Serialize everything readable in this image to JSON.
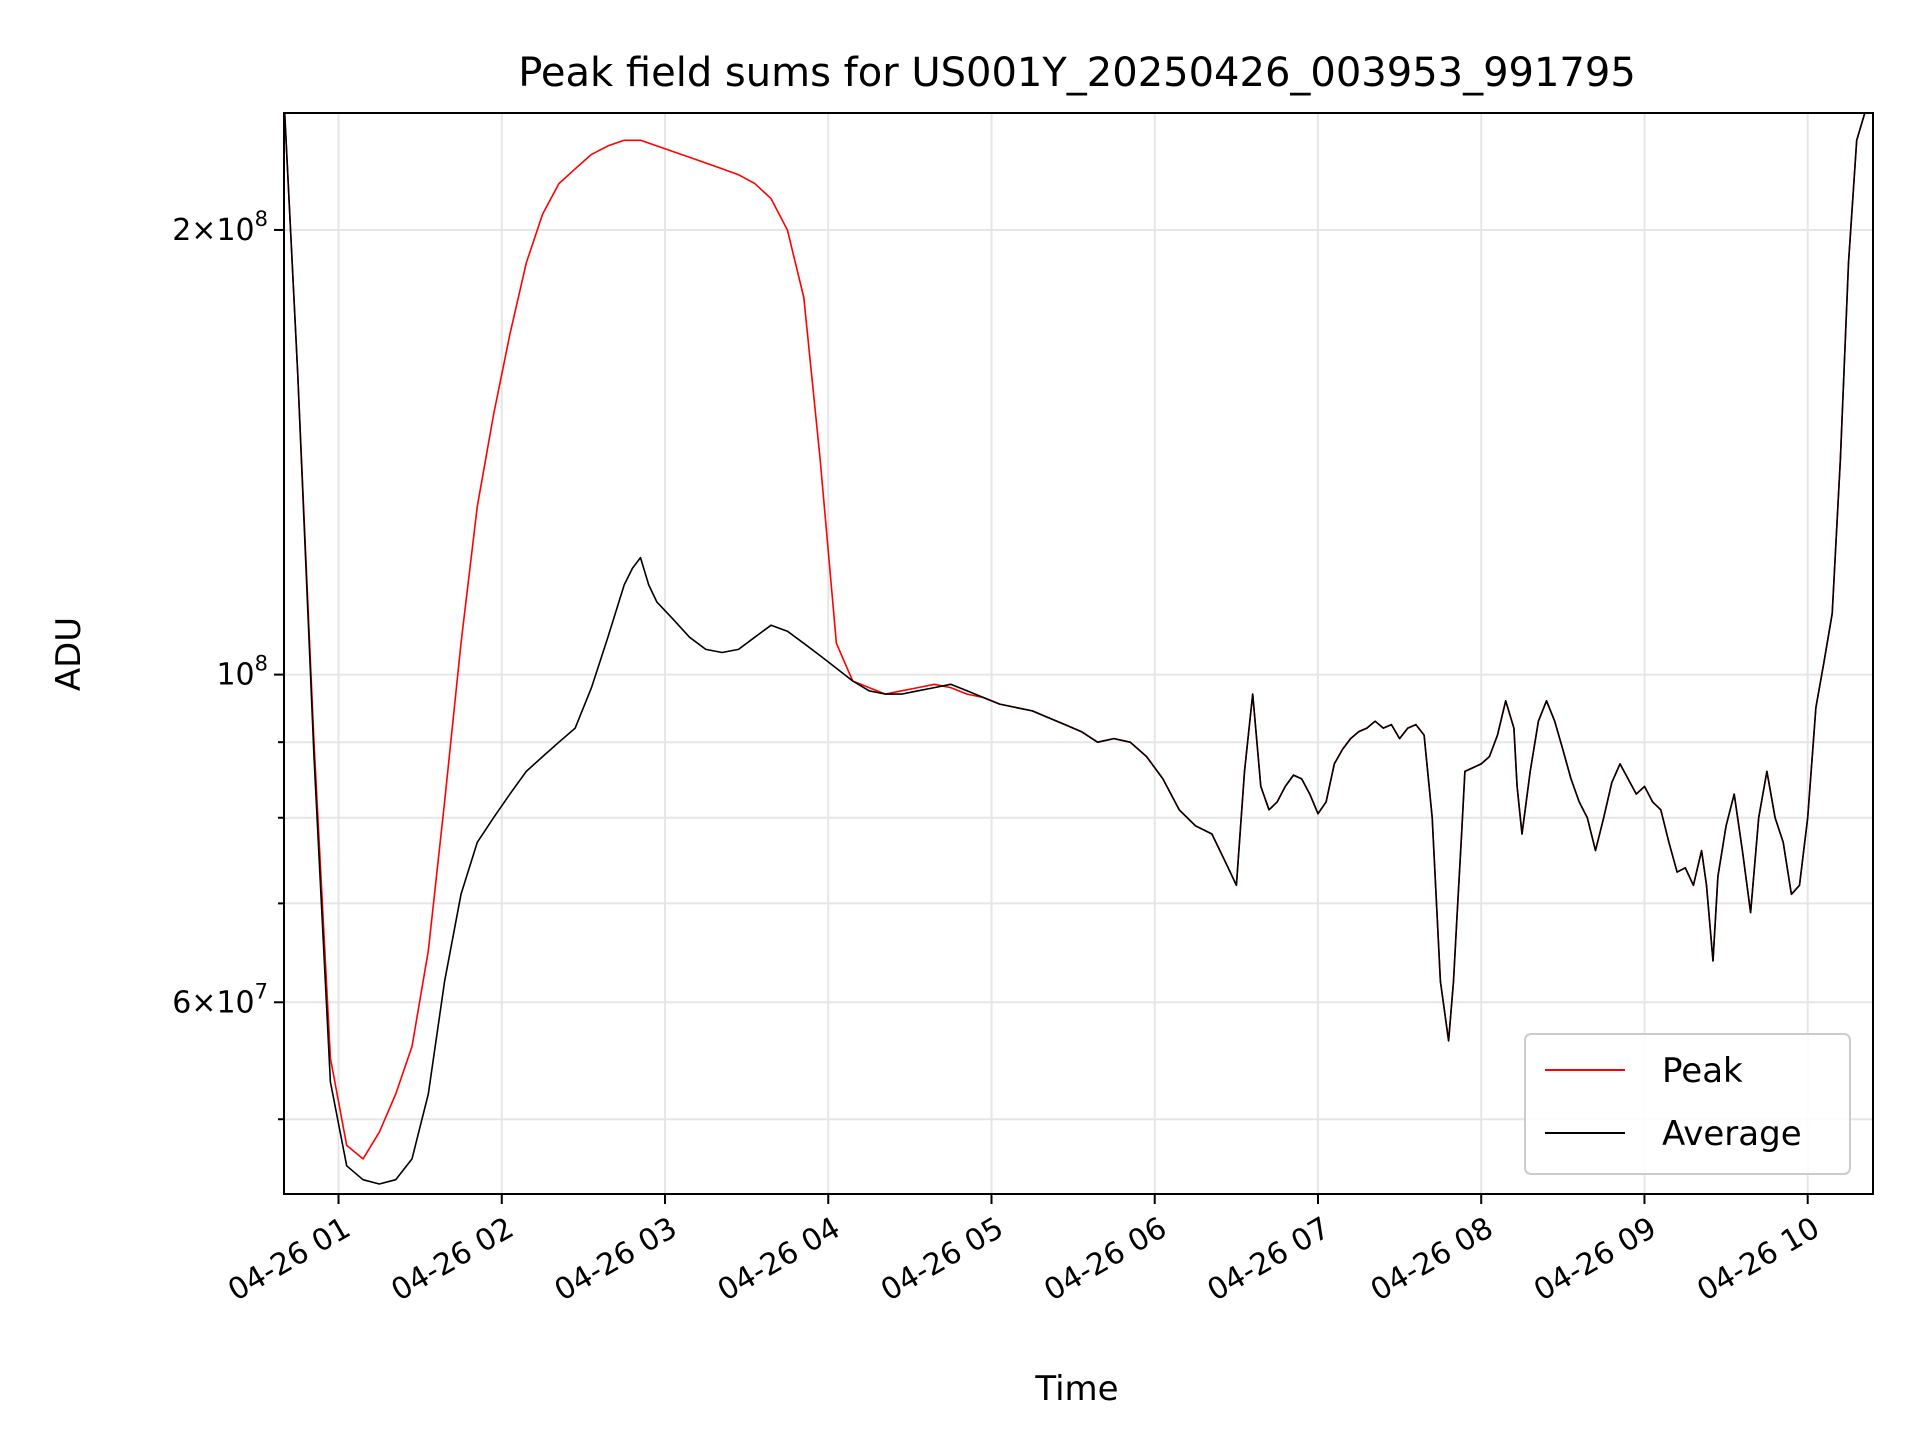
{
  "chart_data": {
    "type": "line",
    "title": "Peak field sums for US001Y_20250426_003953_991795",
    "xlabel": "Time",
    "ylabel": "ADU",
    "yscale": "log",
    "xlim_hours": [
      0.666,
      10.4
    ],
    "ylim": [
      44500000,
      240000000
    ],
    "grid": true,
    "legend_position": "lower-right",
    "x_ticks": [
      {
        "hour": 1,
        "label": "04-26 01"
      },
      {
        "hour": 2,
        "label": "04-26 02"
      },
      {
        "hour": 3,
        "label": "04-26 03"
      },
      {
        "hour": 4,
        "label": "04-26 04"
      },
      {
        "hour": 5,
        "label": "04-26 05"
      },
      {
        "hour": 6,
        "label": "04-26 06"
      },
      {
        "hour": 7,
        "label": "04-26 07"
      },
      {
        "hour": 8,
        "label": "04-26 08"
      },
      {
        "hour": 9,
        "label": "04-26 09"
      },
      {
        "hour": 10,
        "label": "04-26 10"
      }
    ],
    "y_major_ticks": [
      {
        "value": 60000000,
        "mantissa": "6",
        "exp": "7"
      },
      {
        "value": 100000000,
        "mantissa": "",
        "exp": "8"
      },
      {
        "value": 200000000,
        "mantissa": "2",
        "exp": "8"
      }
    ],
    "y_minor_ticks": [
      50000000,
      70000000,
      80000000,
      90000000
    ],
    "series": [
      {
        "name": "Peak",
        "color": "#ff0000",
        "x": [
          0.67,
          0.75,
          0.85,
          0.95,
          1.05,
          1.15,
          1.25,
          1.35,
          1.45,
          1.55,
          1.65,
          1.75,
          1.85,
          1.95,
          2.05,
          2.15,
          2.25,
          2.35,
          2.45,
          2.55,
          2.65,
          2.75,
          2.85,
          2.95,
          3.05,
          3.15,
          3.25,
          3.35,
          3.45,
          3.55,
          3.65,
          3.75,
          3.85,
          3.95,
          4.05,
          4.15,
          4.25,
          4.35,
          4.45,
          4.55,
          4.65,
          4.75,
          4.85,
          4.95,
          5.05,
          5.15,
          5.25,
          5.35,
          5.45,
          5.55,
          5.65,
          5.75,
          5.85,
          5.95,
          6.05,
          6.15,
          6.25,
          6.35,
          6.45,
          6.5,
          6.55,
          6.6,
          6.65,
          6.7,
          6.75,
          6.8,
          6.85,
          6.9,
          6.95,
          7.0,
          7.05,
          7.1,
          7.15,
          7.2,
          7.25,
          7.3,
          7.35,
          7.4,
          7.45,
          7.5,
          7.55,
          7.6,
          7.65,
          7.7,
          7.75,
          7.8,
          7.83,
          7.85,
          7.88,
          7.9,
          7.95,
          8.0,
          8.05,
          8.1,
          8.15,
          8.2,
          8.22,
          8.25,
          8.3,
          8.35,
          8.4,
          8.45,
          8.5,
          8.55,
          8.6,
          8.65,
          8.7,
          8.75,
          8.8,
          8.85,
          8.9,
          8.95,
          9.0,
          9.05,
          9.1,
          9.15,
          9.2,
          9.25,
          9.3,
          9.35,
          9.38,
          9.42,
          9.45,
          9.5,
          9.55,
          9.6,
          9.65,
          9.7,
          9.75,
          9.8,
          9.85,
          9.9,
          9.95,
          10.0,
          10.05,
          10.1,
          10.15,
          10.2,
          10.25,
          10.3,
          10.35,
          10.4
        ],
        "y": [
          240000000,
          160000000,
          90000000,
          55000000,
          48000000,
          47000000,
          49000000,
          52000000,
          56000000,
          65000000,
          82000000,
          105000000,
          130000000,
          150000000,
          170000000,
          190000000,
          205000000,
          215000000,
          220000000,
          225000000,
          228000000,
          230000000,
          230000000,
          228000000,
          226000000,
          224000000,
          222000000,
          220000000,
          218000000,
          215000000,
          210000000,
          200000000,
          180000000,
          140000000,
          105000000,
          99000000,
          98000000,
          97000000,
          97500000,
          98000000,
          98500000,
          98000000,
          97000000,
          96500000,
          95500000,
          95000000,
          94500000,
          93500000,
          92500000,
          91500000,
          90000000,
          90500000,
          90000000,
          88000000,
          85000000,
          81000000,
          79000000,
          78000000,
          74000000,
          72000000,
          86000000,
          97000000,
          84000000,
          81000000,
          82000000,
          84000000,
          85500000,
          85000000,
          83000000,
          80500000,
          82000000,
          87000000,
          89000000,
          90500000,
          91500000,
          92000000,
          93000000,
          92000000,
          92500000,
          90500000,
          92000000,
          92500000,
          91000000,
          80000000,
          62000000,
          56500000,
          62000000,
          68000000,
          78000000,
          86000000,
          86500000,
          87000000,
          88000000,
          91000000,
          96000000,
          92000000,
          84000000,
          78000000,
          86000000,
          93000000,
          96000000,
          93000000,
          89000000,
          85000000,
          82000000,
          80000000,
          76000000,
          80000000,
          84500000,
          87000000,
          85000000,
          83000000,
          84000000,
          82000000,
          81000000,
          77000000,
          73500000,
          74000000,
          72000000,
          76000000,
          72000000,
          64000000,
          73000000,
          79000000,
          83000000,
          76000000,
          69000000,
          80000000,
          86000000,
          80000000,
          77000000,
          71000000,
          72000000,
          80000000,
          95000000,
          102000000,
          110000000,
          140000000,
          190000000,
          230000000,
          240000000,
          240000000
        ]
      },
      {
        "name": "Average",
        "color": "#000000",
        "x": [
          0.67,
          0.75,
          0.85,
          0.95,
          1.05,
          1.15,
          1.25,
          1.35,
          1.45,
          1.55,
          1.65,
          1.75,
          1.85,
          1.95,
          2.05,
          2.15,
          2.25,
          2.35,
          2.45,
          2.55,
          2.65,
          2.75,
          2.8,
          2.85,
          2.9,
          2.95,
          3.05,
          3.15,
          3.25,
          3.35,
          3.45,
          3.55,
          3.65,
          3.75,
          3.85,
          3.95,
          4.05,
          4.15,
          4.25,
          4.35,
          4.45,
          4.55,
          4.65,
          4.75,
          4.85,
          4.95,
          5.05,
          5.15,
          5.25,
          5.35,
          5.45,
          5.55,
          5.65,
          5.75,
          5.85,
          5.95,
          6.05,
          6.15,
          6.25,
          6.35,
          6.45,
          6.5,
          6.55,
          6.6,
          6.65,
          6.7,
          6.75,
          6.8,
          6.85,
          6.9,
          6.95,
          7.0,
          7.05,
          7.1,
          7.15,
          7.2,
          7.25,
          7.3,
          7.35,
          7.4,
          7.45,
          7.5,
          7.55,
          7.6,
          7.65,
          7.7,
          7.75,
          7.8,
          7.83,
          7.85,
          7.88,
          7.9,
          7.95,
          8.0,
          8.05,
          8.1,
          8.15,
          8.2,
          8.22,
          8.25,
          8.3,
          8.35,
          8.4,
          8.45,
          8.5,
          8.55,
          8.6,
          8.65,
          8.7,
          8.75,
          8.8,
          8.85,
          8.9,
          8.95,
          9.0,
          9.05,
          9.1,
          9.15,
          9.2,
          9.25,
          9.3,
          9.35,
          9.38,
          9.42,
          9.45,
          9.5,
          9.55,
          9.6,
          9.65,
          9.7,
          9.75,
          9.8,
          9.85,
          9.9,
          9.95,
          10.0,
          10.05,
          10.1,
          10.15,
          10.2,
          10.25,
          10.3,
          10.35,
          10.4
        ],
        "y": [
          240000000,
          160000000,
          88000000,
          53000000,
          46500000,
          45500000,
          45200000,
          45500000,
          47000000,
          52000000,
          62000000,
          71000000,
          77000000,
          80000000,
          83000000,
          86000000,
          88000000,
          90000000,
          92000000,
          98000000,
          106000000,
          115000000,
          118000000,
          120000000,
          115000000,
          112000000,
          109000000,
          106000000,
          104000000,
          103500000,
          104000000,
          106000000,
          108000000,
          107000000,
          105000000,
          103000000,
          101000000,
          99000000,
          97500000,
          97000000,
          97000000,
          97500000,
          98000000,
          98500000,
          97500000,
          96500000,
          95500000,
          95000000,
          94500000,
          93500000,
          92500000,
          91500000,
          90000000,
          90500000,
          90000000,
          88000000,
          85000000,
          81000000,
          79000000,
          78000000,
          74000000,
          72000000,
          86000000,
          97000000,
          84000000,
          81000000,
          82000000,
          84000000,
          85500000,
          85000000,
          83000000,
          80500000,
          82000000,
          87000000,
          89000000,
          90500000,
          91500000,
          92000000,
          93000000,
          92000000,
          92500000,
          90500000,
          92000000,
          92500000,
          91000000,
          80000000,
          62000000,
          56500000,
          62000000,
          68000000,
          78000000,
          86000000,
          86500000,
          87000000,
          88000000,
          91000000,
          96000000,
          92000000,
          84000000,
          78000000,
          86000000,
          93000000,
          96000000,
          93000000,
          89000000,
          85000000,
          82000000,
          80000000,
          76000000,
          80000000,
          84500000,
          87000000,
          85000000,
          83000000,
          84000000,
          82000000,
          81000000,
          77000000,
          73500000,
          74000000,
          72000000,
          76000000,
          72000000,
          64000000,
          73000000,
          79000000,
          83000000,
          76000000,
          69000000,
          80000000,
          86000000,
          80000000,
          77000000,
          71000000,
          72000000,
          80000000,
          95000000,
          102000000,
          110000000,
          140000000,
          190000000,
          230000000,
          240000000,
          240000000
        ]
      }
    ]
  }
}
